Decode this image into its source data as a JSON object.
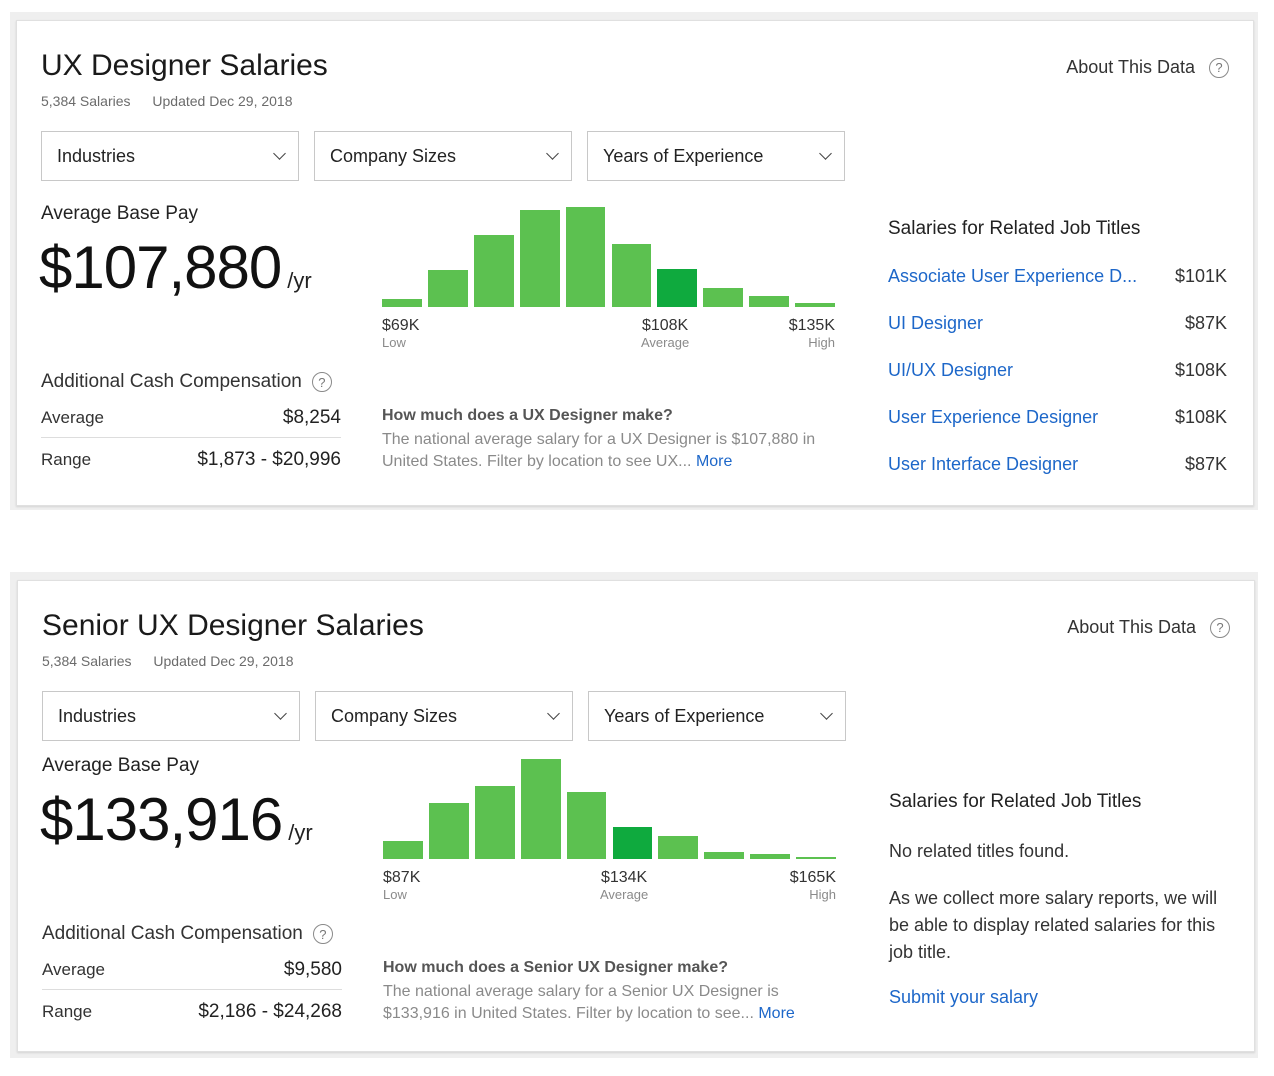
{
  "cards": [
    {
      "title": "UX Designer Salaries",
      "salaries_count": "5,384 Salaries",
      "updated": "Updated Dec 29, 2018",
      "about": "About This Data",
      "about_icon": "help-icon",
      "filters": [
        "Industries",
        "Company Sizes",
        "Years of Experience"
      ],
      "avg_base_label": "Average Base Pay",
      "avg_base_value": "$107,880",
      "per_unit": "/yr",
      "histogram": {
        "relative_heights": [
          0.08,
          0.37,
          0.72,
          0.97,
          1.0,
          0.63,
          0.38,
          0.19,
          0.11,
          0.04
        ],
        "highlight_index": 6,
        "low_value": "$69K",
        "low_label": "Low",
        "avg_value": "$108K",
        "avg_label": "Average",
        "high_value": "$135K",
        "high_label": "High"
      },
      "addl_comp_label": "Additional Cash Compensation",
      "average_label": "Average",
      "average_value": "$8,254",
      "range_label": "Range",
      "range_value": "$1,873 - $20,996",
      "question": "How much does a UX Designer make?",
      "description": "The national average salary for a UX Designer is $107,880 in United States. Filter by location to see UX...",
      "more_link": "More",
      "related_heading": "Salaries for Related Job Titles",
      "related": [
        {
          "title": "Associate User Experience D...",
          "pay": "$101K"
        },
        {
          "title": "UI Designer",
          "pay": "$87K"
        },
        {
          "title": "UI/UX Designer",
          "pay": "$108K"
        },
        {
          "title": "User Experience Designer",
          "pay": "$108K"
        },
        {
          "title": "User Interface Designer",
          "pay": "$87K"
        }
      ]
    },
    {
      "title": "Senior UX Designer Salaries",
      "salaries_count": "5,384 Salaries",
      "updated": "Updated Dec 29, 2018",
      "about": "About This Data",
      "about_icon": "help-icon",
      "filters": [
        "Industries",
        "Company Sizes",
        "Years of Experience"
      ],
      "avg_base_label": "Average Base Pay",
      "avg_base_value": "$133,916",
      "per_unit": "/yr",
      "histogram": {
        "relative_heights": [
          0.18,
          0.56,
          0.73,
          1.0,
          0.67,
          0.32,
          0.23,
          0.07,
          0.05,
          0.02
        ],
        "highlight_index": 5,
        "low_value": "$87K",
        "low_label": "Low",
        "avg_value": "$134K",
        "avg_label": "Average",
        "high_value": "$165K",
        "high_label": "High"
      },
      "addl_comp_label": "Additional Cash Compensation",
      "average_label": "Average",
      "average_value": "$9,580",
      "range_label": "Range",
      "range_value": "$2,186 - $24,268",
      "question": "How much does a Senior UX Designer make?",
      "description": "The national average salary for a Senior UX Designer is $133,916 in United States. Filter by location to see...",
      "more_link": "More",
      "related_heading": "Salaries for Related Job Titles",
      "no_related": "No related titles found.",
      "no_related_desc": "As we collect more salary reports, we will be able to display related salaries for this job title.",
      "submit_link": "Submit your salary"
    }
  ],
  "colors": {
    "bar": "#5cc150",
    "bar_highlight": "#0faa3e",
    "link": "#1d67c9"
  }
}
